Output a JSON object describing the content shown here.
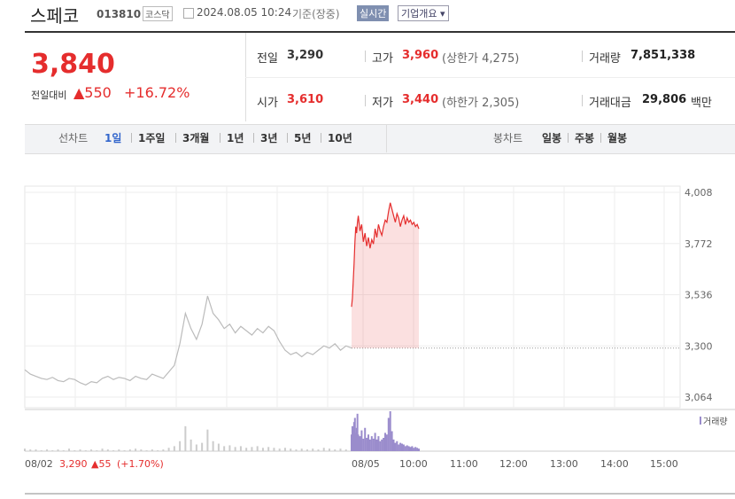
{
  "header": {
    "name": "스페코",
    "code": "013810",
    "market": "코스닥",
    "datetime": "2024.08.05 10:24",
    "basis": "기준(장중)",
    "realtime": "실시간",
    "overview": "기업개요"
  },
  "quote": {
    "price": "3,840",
    "change_label": "전일대비",
    "change": "▲550",
    "change_pct": "+16.72%",
    "rows": [
      [
        {
          "label": "전일",
          "value": "3,290"
        },
        {
          "label": "고가",
          "value": "3,960",
          "note": "(상한가 4,275)"
        },
        {
          "label": "거래량",
          "value": "7,851,338"
        }
      ],
      [
        {
          "label": "시가",
          "value": "3,610"
        },
        {
          "label": "저가",
          "value": "3,440",
          "note": "(하한가 2,305)"
        },
        {
          "label": "거래대금",
          "value": "29,806",
          "unit": "백만"
        }
      ]
    ]
  },
  "tabs": {
    "line_label": "선차트",
    "line": [
      "1일",
      "1주일",
      "3개월",
      "1년",
      "3년",
      "5년",
      "10년"
    ],
    "candle_label": "봉차트",
    "candle": [
      "일봉",
      "주봉",
      "월봉"
    ]
  },
  "chart_data": {
    "type": "line",
    "ylim": [
      3064,
      4008
    ],
    "yticks": [
      {
        "value": 4008,
        "label": "4,008"
      },
      {
        "value": 3772,
        "label": "3,772"
      },
      {
        "value": 3536,
        "label": "3,536"
      },
      {
        "value": 3300,
        "label": "3,300"
      },
      {
        "value": 3064,
        "label": "3,064"
      }
    ],
    "base": 3290,
    "xlabels": [
      "08/02",
      "08/05",
      "10:00",
      "11:00",
      "12:00",
      "13:00",
      "14:00",
      "15:00"
    ],
    "prev_summary": {
      "price": "3,290",
      "change": "▲55",
      "pct": "(+1.70%)"
    },
    "volume_label": "거래량",
    "series": [
      {
        "color": "#bbbbbb",
        "values": [
          3190,
          3170,
          3160,
          3150,
          3145,
          3155,
          3140,
          3135,
          3150,
          3145,
          3130,
          3120,
          3135,
          3130,
          3150,
          3160,
          3145,
          3155,
          3150,
          3140,
          3160,
          3150,
          3145,
          3170,
          3160,
          3150,
          3180,
          3210,
          3310,
          3450,
          3380,
          3330,
          3400,
          3530,
          3450,
          3420,
          3380,
          3400,
          3360,
          3390,
          3370,
          3350,
          3380,
          3360,
          3390,
          3370,
          3320,
          3280,
          3260,
          3270,
          3250,
          3270,
          3260,
          3280,
          3300,
          3290,
          3310,
          3280,
          3300,
          3290
        ],
        "volume": [
          3,
          2,
          2,
          1,
          2,
          1,
          2,
          1,
          3,
          1,
          2,
          1,
          2,
          1,
          3,
          2,
          1,
          2,
          1,
          2,
          3,
          2,
          1,
          2,
          1,
          2,
          4,
          6,
          12,
          30,
          14,
          8,
          10,
          26,
          12,
          9,
          6,
          7,
          5,
          6,
          4,
          5,
          6,
          4,
          5,
          4,
          3,
          4,
          3,
          2,
          3,
          2,
          3,
          2,
          4,
          3,
          2,
          3,
          2,
          3
        ]
      },
      {
        "color": "#e52d2d",
        "x": [
          0,
          1,
          2,
          3,
          4,
          5,
          6,
          7,
          8,
          10,
          12,
          14,
          16,
          18,
          20,
          22,
          24,
          26,
          28,
          30,
          32,
          34,
          36,
          38,
          40,
          42,
          44,
          46,
          48,
          50,
          52,
          54,
          56,
          58,
          60,
          62,
          64,
          66,
          68,
          70,
          72,
          74,
          76,
          78,
          80
        ],
        "values": [
          3480,
          3520,
          3600,
          3680,
          3780,
          3850,
          3820,
          3870,
          3900,
          3830,
          3860,
          3780,
          3820,
          3760,
          3800,
          3750,
          3790,
          3770,
          3840,
          3800,
          3860,
          3830,
          3810,
          3850,
          3880,
          3870,
          3920,
          3960,
          3930,
          3900,
          3870,
          3910,
          3890,
          3850,
          3880,
          3900,
          3860,
          3890,
          3870,
          3880,
          3860,
          3870,
          3850,
          3860,
          3840
        ],
        "volume": [
          20,
          30,
          25,
          35,
          40,
          22,
          28,
          45,
          20,
          18,
          25,
          15,
          28,
          16,
          20,
          14,
          18,
          15,
          22,
          14,
          18,
          12,
          14,
          16,
          22,
          20,
          40,
          48,
          24,
          14,
          10,
          12,
          8,
          10,
          9,
          8,
          6,
          7,
          6,
          5,
          6,
          4,
          5,
          4,
          3
        ]
      }
    ]
  }
}
